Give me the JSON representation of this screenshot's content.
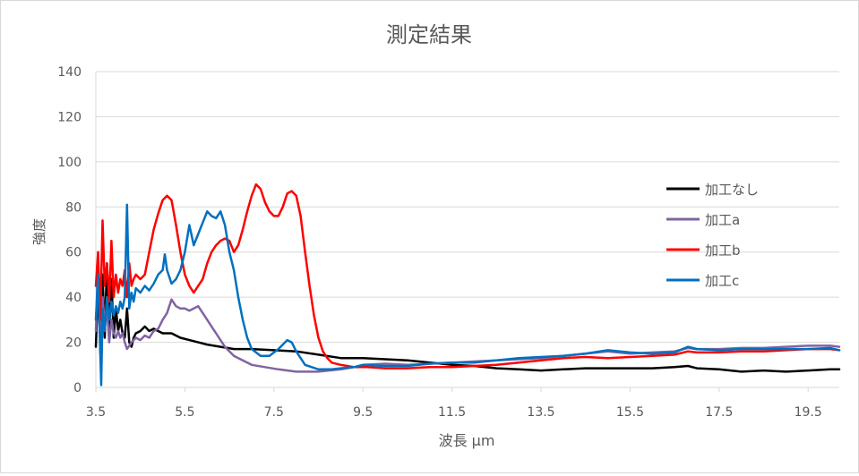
{
  "chart_data": {
    "type": "line",
    "title": "測定結果",
    "xlabel": "波長 μm",
    "ylabel": "強度",
    "xlim": [
      3.5,
      20.2
    ],
    "ylim": [
      0,
      140
    ],
    "x_ticks": [
      3.5,
      5.5,
      7.5,
      9.5,
      11.5,
      13.5,
      15.5,
      17.5,
      19.5
    ],
    "x_tick_labels": [
      "3.5",
      "5.5",
      "7.5",
      "9.5",
      "11.5",
      "13.5",
      "15.5",
      "17.5",
      "19.5"
    ],
    "y_ticks": [
      0,
      20,
      40,
      60,
      80,
      100,
      120,
      140
    ],
    "y_tick_labels": [
      "0",
      "20",
      "40",
      "60",
      "80",
      "100",
      "120",
      "140"
    ],
    "grid": "horizontal",
    "legend": "right",
    "series": [
      {
        "name": "加工なし",
        "color": "#000000",
        "points": [
          [
            3.5,
            18
          ],
          [
            3.55,
            45
          ],
          [
            3.6,
            20
          ],
          [
            3.65,
            50
          ],
          [
            3.7,
            22
          ],
          [
            3.75,
            55
          ],
          [
            3.8,
            25
          ],
          [
            3.85,
            48
          ],
          [
            3.9,
            22
          ],
          [
            3.95,
            35
          ],
          [
            4.0,
            25
          ],
          [
            4.05,
            30
          ],
          [
            4.1,
            24
          ],
          [
            4.15,
            22
          ],
          [
            4.2,
            35
          ],
          [
            4.25,
            20
          ],
          [
            4.3,
            18
          ],
          [
            4.35,
            22
          ],
          [
            4.4,
            24
          ],
          [
            4.5,
            25
          ],
          [
            4.6,
            27
          ],
          [
            4.7,
            25
          ],
          [
            4.8,
            26
          ],
          [
            4.9,
            25
          ],
          [
            5.0,
            24
          ],
          [
            5.2,
            24
          ],
          [
            5.4,
            22
          ],
          [
            5.6,
            21
          ],
          [
            5.8,
            20
          ],
          [
            6.0,
            19
          ],
          [
            6.3,
            18
          ],
          [
            6.6,
            17
          ],
          [
            7.0,
            17
          ],
          [
            7.5,
            16.5
          ],
          [
            8.0,
            16
          ],
          [
            8.5,
            14.5
          ],
          [
            9.0,
            13
          ],
          [
            9.5,
            13
          ],
          [
            10.0,
            12.5
          ],
          [
            10.5,
            12
          ],
          [
            11.0,
            11
          ],
          [
            11.5,
            10
          ],
          [
            12.0,
            9.5
          ],
          [
            12.5,
            8.5
          ],
          [
            13.0,
            8
          ],
          [
            13.5,
            7.5
          ],
          [
            14.0,
            8
          ],
          [
            14.5,
            8.5
          ],
          [
            15.0,
            8.5
          ],
          [
            15.5,
            8.5
          ],
          [
            16.0,
            8.5
          ],
          [
            16.5,
            9
          ],
          [
            16.8,
            9.5
          ],
          [
            17.0,
            8.5
          ],
          [
            17.5,
            8
          ],
          [
            18.0,
            7
          ],
          [
            18.5,
            7.5
          ],
          [
            19.0,
            7
          ],
          [
            19.5,
            7.5
          ],
          [
            20.0,
            8
          ],
          [
            20.2,
            8
          ]
        ]
      },
      {
        "name": "加工a",
        "color": "#8064a2",
        "points": [
          [
            3.5,
            25
          ],
          [
            3.55,
            55
          ],
          [
            3.6,
            15
          ],
          [
            3.65,
            40
          ],
          [
            3.7,
            28
          ],
          [
            3.75,
            35
          ],
          [
            3.8,
            20
          ],
          [
            3.85,
            30
          ],
          [
            3.9,
            24
          ],
          [
            3.95,
            22
          ],
          [
            4.0,
            25
          ],
          [
            4.05,
            22
          ],
          [
            4.1,
            24
          ],
          [
            4.15,
            20
          ],
          [
            4.2,
            17
          ],
          [
            4.3,
            20
          ],
          [
            4.4,
            22
          ],
          [
            4.5,
            21
          ],
          [
            4.6,
            23
          ],
          [
            4.7,
            22
          ],
          [
            4.8,
            25
          ],
          [
            4.9,
            26
          ],
          [
            5.0,
            30
          ],
          [
            5.1,
            33
          ],
          [
            5.2,
            39
          ],
          [
            5.3,
            36
          ],
          [
            5.4,
            35
          ],
          [
            5.5,
            35
          ],
          [
            5.6,
            34
          ],
          [
            5.7,
            35
          ],
          [
            5.8,
            36
          ],
          [
            5.9,
            33
          ],
          [
            6.0,
            30
          ],
          [
            6.1,
            27
          ],
          [
            6.2,
            24
          ],
          [
            6.4,
            18
          ],
          [
            6.6,
            14
          ],
          [
            6.8,
            12
          ],
          [
            7.0,
            10
          ],
          [
            7.3,
            9
          ],
          [
            7.6,
            8
          ],
          [
            8.0,
            7
          ],
          [
            8.5,
            7
          ],
          [
            9.0,
            8
          ],
          [
            9.3,
            9
          ],
          [
            9.5,
            10
          ],
          [
            10.0,
            10.5
          ],
          [
            10.5,
            10
          ],
          [
            11.0,
            10.5
          ],
          [
            11.5,
            11
          ],
          [
            12.0,
            11.5
          ],
          [
            12.5,
            12
          ],
          [
            13.0,
            12.5
          ],
          [
            13.5,
            13
          ],
          [
            14.0,
            14
          ],
          [
            14.5,
            15
          ],
          [
            15.0,
            16
          ],
          [
            15.5,
            15
          ],
          [
            16.0,
            15.5
          ],
          [
            16.5,
            16
          ],
          [
            16.8,
            17.5
          ],
          [
            17.0,
            17
          ],
          [
            17.5,
            17
          ],
          [
            18.0,
            17.5
          ],
          [
            18.5,
            17.5
          ],
          [
            19.0,
            18
          ],
          [
            19.5,
            18.5
          ],
          [
            20.0,
            18.5
          ],
          [
            20.2,
            18
          ]
        ]
      },
      {
        "name": "加工b",
        "color": "#ff0000",
        "points": [
          [
            3.5,
            45
          ],
          [
            3.55,
            60
          ],
          [
            3.6,
            30
          ],
          [
            3.65,
            74
          ],
          [
            3.7,
            45
          ],
          [
            3.75,
            55
          ],
          [
            3.8,
            38
          ],
          [
            3.85,
            65
          ],
          [
            3.9,
            40
          ],
          [
            3.95,
            50
          ],
          [
            4.0,
            42
          ],
          [
            4.05,
            48
          ],
          [
            4.1,
            45
          ],
          [
            4.15,
            52
          ],
          [
            4.2,
            40
          ],
          [
            4.25,
            55
          ],
          [
            4.3,
            45
          ],
          [
            4.35,
            48
          ],
          [
            4.4,
            50
          ],
          [
            4.5,
            48
          ],
          [
            4.6,
            50
          ],
          [
            4.7,
            60
          ],
          [
            4.8,
            70
          ],
          [
            4.9,
            77
          ],
          [
            5.0,
            83
          ],
          [
            5.1,
            85
          ],
          [
            5.2,
            83
          ],
          [
            5.3,
            72
          ],
          [
            5.4,
            60
          ],
          [
            5.5,
            50
          ],
          [
            5.6,
            45
          ],
          [
            5.7,
            42
          ],
          [
            5.8,
            45
          ],
          [
            5.9,
            48
          ],
          [
            6.0,
            55
          ],
          [
            6.1,
            60
          ],
          [
            6.2,
            63
          ],
          [
            6.3,
            65
          ],
          [
            6.4,
            66
          ],
          [
            6.5,
            65
          ],
          [
            6.6,
            60
          ],
          [
            6.7,
            63
          ],
          [
            6.8,
            70
          ],
          [
            6.9,
            78
          ],
          [
            7.0,
            85
          ],
          [
            7.1,
            90
          ],
          [
            7.2,
            88
          ],
          [
            7.3,
            82
          ],
          [
            7.4,
            78
          ],
          [
            7.5,
            76
          ],
          [
            7.6,
            76
          ],
          [
            7.7,
            80
          ],
          [
            7.8,
            86
          ],
          [
            7.9,
            87
          ],
          [
            8.0,
            85
          ],
          [
            8.1,
            76
          ],
          [
            8.2,
            60
          ],
          [
            8.3,
            45
          ],
          [
            8.4,
            32
          ],
          [
            8.5,
            22
          ],
          [
            8.6,
            16
          ],
          [
            8.7,
            13
          ],
          [
            8.8,
            11
          ],
          [
            9.0,
            10
          ],
          [
            9.3,
            9
          ],
          [
            9.6,
            9
          ],
          [
            10.0,
            8.5
          ],
          [
            10.5,
            8.5
          ],
          [
            11.0,
            9
          ],
          [
            11.5,
            9
          ],
          [
            12.0,
            9.5
          ],
          [
            12.5,
            10
          ],
          [
            13.0,
            11
          ],
          [
            13.5,
            12
          ],
          [
            14.0,
            13
          ],
          [
            14.5,
            13.5
          ],
          [
            15.0,
            13
          ],
          [
            15.5,
            13.5
          ],
          [
            16.0,
            14
          ],
          [
            16.5,
            14.5
          ],
          [
            16.8,
            16
          ],
          [
            17.0,
            15.5
          ],
          [
            17.5,
            15.5
          ],
          [
            18.0,
            16
          ],
          [
            18.5,
            16
          ],
          [
            19.0,
            16.5
          ],
          [
            19.5,
            17
          ],
          [
            20.0,
            17
          ],
          [
            20.2,
            16.5
          ]
        ]
      },
      {
        "name": "加工c",
        "color": "#0070c0",
        "points": [
          [
            3.5,
            30
          ],
          [
            3.55,
            50
          ],
          [
            3.6,
            15
          ],
          [
            3.62,
            1
          ],
          [
            3.65,
            35
          ],
          [
            3.7,
            25
          ],
          [
            3.75,
            40
          ],
          [
            3.8,
            30
          ],
          [
            3.85,
            38
          ],
          [
            3.9,
            32
          ],
          [
            3.95,
            36
          ],
          [
            4.0,
            33
          ],
          [
            4.05,
            38
          ],
          [
            4.1,
            35
          ],
          [
            4.15,
            40
          ],
          [
            4.2,
            81
          ],
          [
            4.25,
            35
          ],
          [
            4.3,
            42
          ],
          [
            4.35,
            38
          ],
          [
            4.4,
            44
          ],
          [
            4.5,
            42
          ],
          [
            4.6,
            45
          ],
          [
            4.7,
            43
          ],
          [
            4.8,
            46
          ],
          [
            4.9,
            50
          ],
          [
            5.0,
            52
          ],
          [
            5.05,
            59
          ],
          [
            5.1,
            52
          ],
          [
            5.2,
            46
          ],
          [
            5.3,
            48
          ],
          [
            5.4,
            52
          ],
          [
            5.5,
            60
          ],
          [
            5.6,
            72
          ],
          [
            5.7,
            63
          ],
          [
            5.8,
            68
          ],
          [
            5.9,
            73
          ],
          [
            6.0,
            78
          ],
          [
            6.1,
            76
          ],
          [
            6.2,
            75
          ],
          [
            6.3,
            78
          ],
          [
            6.4,
            72
          ],
          [
            6.5,
            60
          ],
          [
            6.6,
            52
          ],
          [
            6.7,
            40
          ],
          [
            6.8,
            30
          ],
          [
            6.9,
            22
          ],
          [
            7.0,
            17
          ],
          [
            7.2,
            14
          ],
          [
            7.4,
            14
          ],
          [
            7.6,
            17
          ],
          [
            7.8,
            21
          ],
          [
            7.9,
            20
          ],
          [
            8.0,
            16
          ],
          [
            8.2,
            10
          ],
          [
            8.5,
            8
          ],
          [
            8.8,
            8
          ],
          [
            9.0,
            8.5
          ],
          [
            9.3,
            9
          ],
          [
            9.5,
            10
          ],
          [
            10.0,
            9.5
          ],
          [
            10.5,
            9.5
          ],
          [
            11.0,
            10.5
          ],
          [
            11.5,
            11
          ],
          [
            12.0,
            11
          ],
          [
            12.5,
            12
          ],
          [
            13.0,
            13
          ],
          [
            13.5,
            13.5
          ],
          [
            14.0,
            14
          ],
          [
            14.5,
            15
          ],
          [
            15.0,
            16.5
          ],
          [
            15.5,
            15.5
          ],
          [
            16.0,
            15
          ],
          [
            16.5,
            15.5
          ],
          [
            16.8,
            18
          ],
          [
            17.0,
            17
          ],
          [
            17.5,
            16.5
          ],
          [
            18.0,
            17
          ],
          [
            18.5,
            17
          ],
          [
            19.0,
            17
          ],
          [
            19.5,
            17
          ],
          [
            20.0,
            17.5
          ],
          [
            20.2,
            16.5
          ]
        ]
      }
    ]
  }
}
